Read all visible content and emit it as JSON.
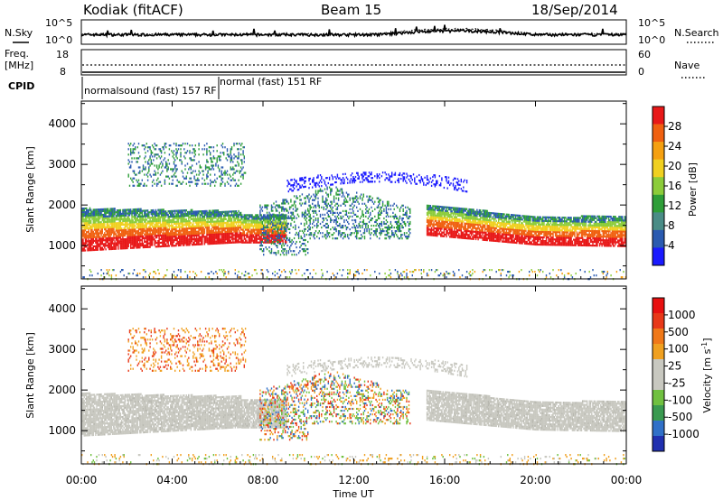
{
  "header": {
    "station": "Kodiak (fitACF)",
    "beam": "Beam 15",
    "date": "18/Sep/2014"
  },
  "noise_panel": {
    "left_label": "N.Sky",
    "right_label": "N.Search",
    "left_ticks": [
      "10^5",
      "10^0"
    ],
    "right_ticks": [
      "10^5",
      "10^0"
    ]
  },
  "freq_panel": {
    "left_label_line1": "Freq.",
    "left_label_line2": "[MHz]",
    "right_label": "Nave",
    "left_ticks": [
      "18",
      "8"
    ],
    "right_ticks": [
      "60",
      "0"
    ]
  },
  "cpid_panel": {
    "label": "CPID",
    "modes": [
      {
        "text": "normalsound (fast) 157 RF",
        "start": "00:00",
        "end": "06:00"
      },
      {
        "text": "normal (fast) 151 RF",
        "start": "06:00",
        "end": "24:00"
      }
    ]
  },
  "time_axis": {
    "label": "Time UT",
    "ticks": [
      "00:00",
      "04:00",
      "08:00",
      "12:00",
      "16:00",
      "20:00",
      "00:00"
    ],
    "start_hour": 0,
    "end_hour": 24
  },
  "chart_data": [
    {
      "type": "heatmap",
      "name": "power",
      "ylabel": "Slant Range [km]",
      "ylim": [
        180,
        4560
      ],
      "yticks": [
        1000,
        2000,
        3000,
        4000
      ],
      "colorbar": {
        "label": "Power [dB]",
        "ticks": [
          "4",
          "8",
          "12",
          "16",
          "20",
          "24",
          "28"
        ],
        "colors": [
          "#1a1aff",
          "#2a5ab0",
          "#4a8c86",
          "#2e9e38",
          "#8ccc3a",
          "#f0d020",
          "#f5a010",
          "#f06010",
          "#e81818"
        ]
      }
    },
    {
      "type": "heatmap",
      "name": "velocity",
      "ylabel": "Slant Range [km]",
      "ylim": [
        180,
        4560
      ],
      "yticks": [
        1000,
        2000,
        3000,
        4000
      ],
      "colorbar": {
        "label": "Velocity [m s^-1]",
        "ticks": [
          "1000",
          "500",
          "100",
          "25",
          "-25",
          "-100",
          "-500",
          "-1000"
        ],
        "colors": [
          "#2030b0",
          "#3070c8",
          "#3a9a50",
          "#70c040",
          "#c8c8c0",
          "#c8c8c0",
          "#f0a020",
          "#f07818",
          "#e83818",
          "#e81010"
        ]
      }
    }
  ]
}
